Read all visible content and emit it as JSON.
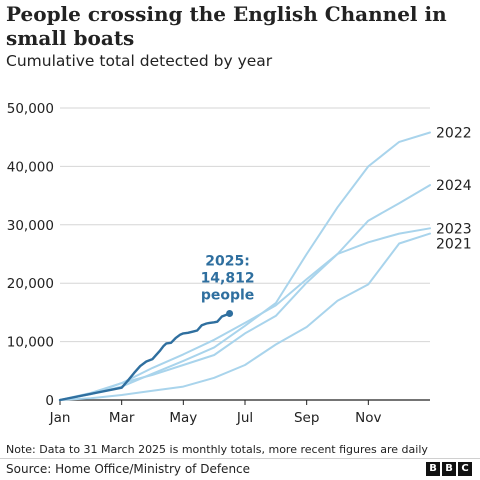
{
  "title": "People crossing the English Channel in small boats",
  "subtitle": "Cumulative total detected by year",
  "note": "Note: Data to 31 March 2025 is monthly totals, more recent figures are daily",
  "source": "Source: Home Office/Ministry of Defence",
  "logo_letters": [
    "B",
    "B",
    "C"
  ],
  "colors": {
    "highlight": "#2f6f9f",
    "context": "#a9d4ec",
    "axis": "#222222",
    "grid": "#d6d6d6",
    "annotation": "#2f6f9f"
  },
  "chart_data": {
    "type": "line",
    "title": "People crossing the English Channel in small boats",
    "subtitle": "Cumulative total detected by year",
    "xlabel": "",
    "ylabel": "",
    "x_unit": "month (0 = start of January, 12 = end of December)",
    "xlim": [
      0,
      12
    ],
    "ylim": [
      0,
      50000
    ],
    "grid": true,
    "legend": "direct labels at line ends",
    "x_ticks": [
      {
        "value": 0,
        "label": "Jan"
      },
      {
        "value": 2,
        "label": "Mar"
      },
      {
        "value": 4,
        "label": "May"
      },
      {
        "value": 6,
        "label": "Jul"
      },
      {
        "value": 8,
        "label": "Sep"
      },
      {
        "value": 10,
        "label": "Nov"
      }
    ],
    "y_ticks": [
      {
        "value": 0,
        "label": "0"
      },
      {
        "value": 10000,
        "label": "10,000"
      },
      {
        "value": 20000,
        "label": "20,000"
      },
      {
        "value": 30000,
        "label": "30,000"
      },
      {
        "value": 40000,
        "label": "40,000"
      },
      {
        "value": 50000,
        "label": "50,000"
      }
    ],
    "series": [
      {
        "name": "2022",
        "label": "2022",
        "highlight": false,
        "x": [
          0,
          1,
          2,
          3,
          4,
          5,
          6,
          7,
          8,
          9,
          10,
          11,
          12
        ],
        "y": [
          0,
          1000,
          2300,
          4500,
          6700,
          9000,
          12700,
          16600,
          25000,
          33000,
          40000,
          44200,
          45800
        ]
      },
      {
        "name": "2024",
        "label": "2024",
        "highlight": false,
        "x": [
          0,
          1,
          2,
          3,
          4,
          5,
          6,
          7,
          8,
          9,
          10,
          11,
          12
        ],
        "y": [
          0,
          1200,
          2900,
          5500,
          7800,
          10300,
          13200,
          16200,
          20700,
          25000,
          30700,
          33700,
          36800
        ]
      },
      {
        "name": "2023",
        "label": "2023",
        "highlight": false,
        "x": [
          0,
          1,
          2,
          3,
          4,
          5,
          6,
          7,
          8,
          9,
          10,
          11,
          12
        ],
        "y": [
          0,
          1000,
          2900,
          4300,
          6000,
          7700,
          11400,
          14400,
          20100,
          25000,
          27000,
          28500,
          29400
        ]
      },
      {
        "name": "2021",
        "label": "2021",
        "highlight": false,
        "x": [
          0,
          1,
          2,
          3,
          4,
          5,
          6,
          7,
          8,
          9,
          10,
          11,
          12
        ],
        "y": [
          0,
          300,
          850,
          1600,
          2300,
          3800,
          6000,
          9500,
          12500,
          17000,
          19800,
          26800,
          28500
        ]
      },
      {
        "name": "2025",
        "label": "",
        "highlight": true,
        "x": [
          0,
          2,
          2.2,
          2.4,
          2.6,
          2.8,
          3.0,
          3.1,
          3.25,
          3.35,
          3.45,
          3.6,
          3.75,
          3.9,
          4.0,
          4.15,
          4.3,
          4.45,
          4.6,
          4.75,
          4.85,
          5.0,
          5.1,
          5.25,
          5.4,
          5.5
        ],
        "y": [
          0,
          2100,
          3300,
          4600,
          5800,
          6600,
          7000,
          7600,
          8500,
          9200,
          9700,
          9800,
          10600,
          11200,
          11400,
          11500,
          11700,
          11900,
          12800,
          13100,
          13200,
          13300,
          13400,
          14300,
          14600,
          14812
        ]
      }
    ],
    "annotations": [
      {
        "series": "2025",
        "lines": [
          "2025:",
          "14,812",
          "people"
        ],
        "value": 14812
      }
    ]
  }
}
